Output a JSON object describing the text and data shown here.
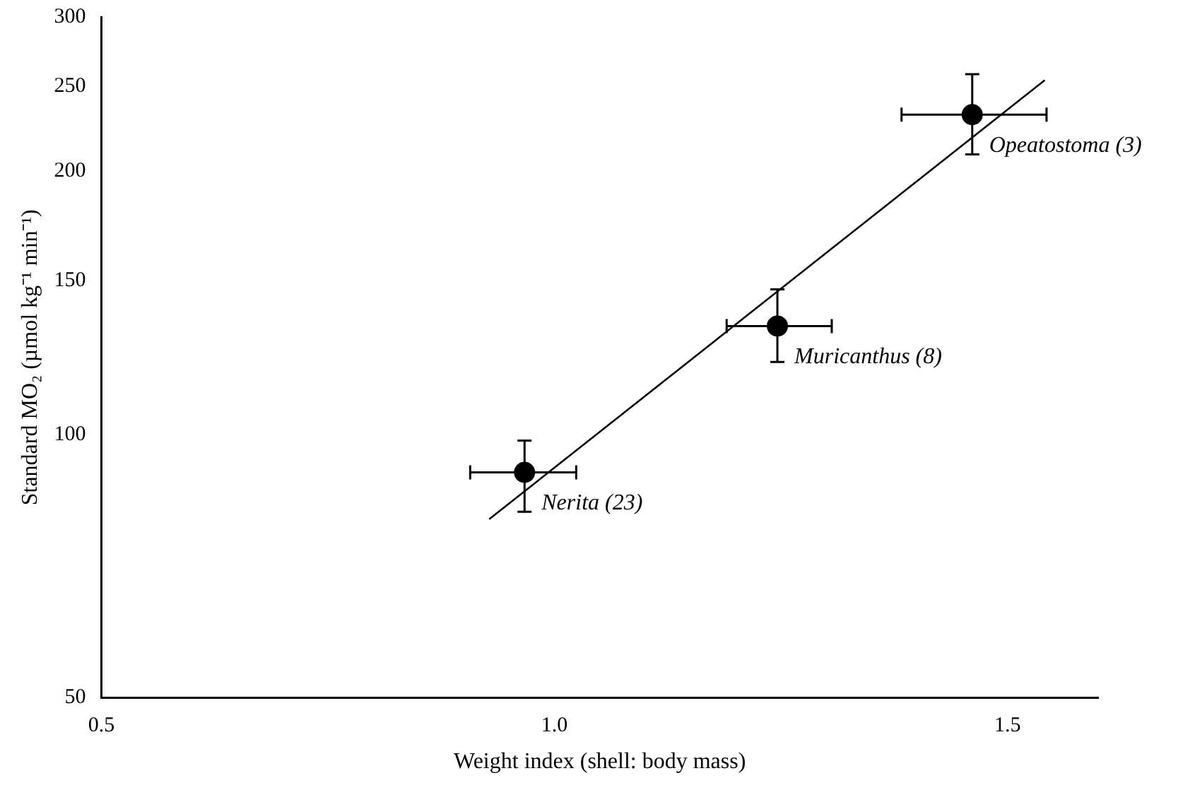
{
  "chart_data": {
    "type": "scatter",
    "xlabel": "Weight index (shell: body mass)",
    "ylabel": "Standard MO₂ (µmol kg⁻¹ min⁻¹)",
    "log": "y",
    "xlim": [
      0.5,
      1.6
    ],
    "xticks": [
      0.5,
      {
        "value": 1.0,
        "label": "1.0"
      },
      1.5
    ],
    "ylim": [
      50,
      300
    ],
    "yticks": [
      50,
      100,
      150,
      200,
      250,
      300
    ],
    "grid": false,
    "legend": false,
    "marker": "circle",
    "series": [
      {
        "color": "#000000",
        "x": [
          0.967,
          1.246,
          1.461
        ],
        "values": [
          90.5,
          133,
          232
        ],
        "errors": [
          [
            81.6,
            98.4
          ],
          [
            121,
            146.5
          ],
          [
            209,
            258
          ]
        ],
        "xerrors": [
          [
            0.907,
            1.024
          ],
          [
            1.19,
            1.306
          ],
          [
            1.383,
            1.543
          ]
        ]
      },
      {
        "type": "line",
        "color": "#000000",
        "x": [
          0.928,
          1.541
        ],
        "values": [
          80,
          254
        ],
        "marker": "none",
        "line_style": "solid"
      }
    ],
    "annotations": [
      {
        "text": "Nerita (23)",
        "x": 0.967,
        "y": 90.5
      },
      {
        "text": "Muricanthus (8)",
        "x": 1.246,
        "y": 133
      },
      {
        "text": "Opeatostoma (3)",
        "x": 1.461,
        "y": 232
      }
    ]
  }
}
